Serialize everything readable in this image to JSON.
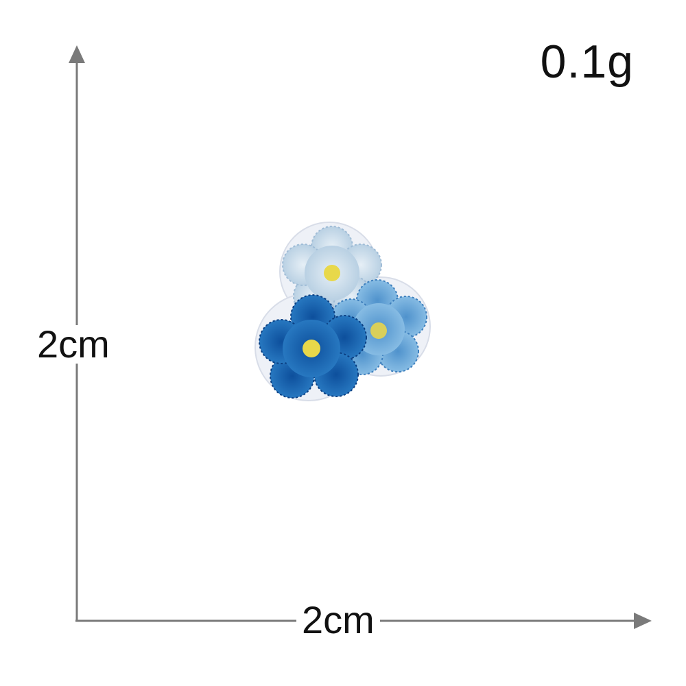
{
  "product": {
    "weight": "0.1g",
    "height_label": "2cm",
    "width_label": "2cm",
    "item": "embroidered-flower-patch",
    "colors": {
      "axis": "#7a7a7a",
      "text": "#111111",
      "flower_pale": "#c6d9e8",
      "flower_light": "#7fb6e0",
      "flower_dark": "#1f6cba",
      "center": "#e8d84a",
      "backing": "#eef1f7"
    }
  }
}
